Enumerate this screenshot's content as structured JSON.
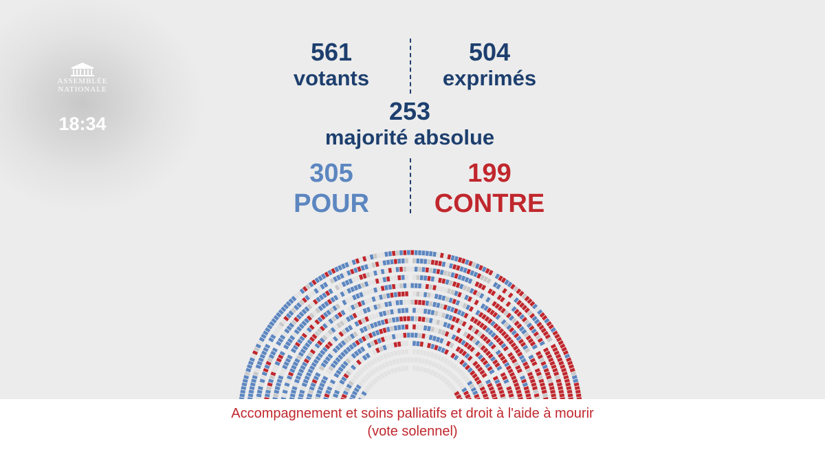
{
  "header": {
    "logo_line1": "ASSEMBLÉE",
    "logo_line2": "NATIONALE",
    "time": "18:34"
  },
  "stats": {
    "votants": {
      "value": "561",
      "label": "votants"
    },
    "exprimes": {
      "value": "504",
      "label": "exprimés"
    },
    "majorite": {
      "value": "253",
      "label": "majorité absolue"
    },
    "pour": {
      "value": "305",
      "label": "POUR"
    },
    "contre": {
      "value": "199",
      "label": "CONTRE"
    }
  },
  "hemicycle": {
    "colors": {
      "pour": "#5c86c0",
      "contre": "#c0272d",
      "abstention": "#c8c8c8",
      "absent": "#e2e2e2"
    }
  },
  "caption": {
    "line1": "Accompagnement et soins palliatifs et droit à l'aide à mourir",
    "line2": "(vote solennel)"
  }
}
